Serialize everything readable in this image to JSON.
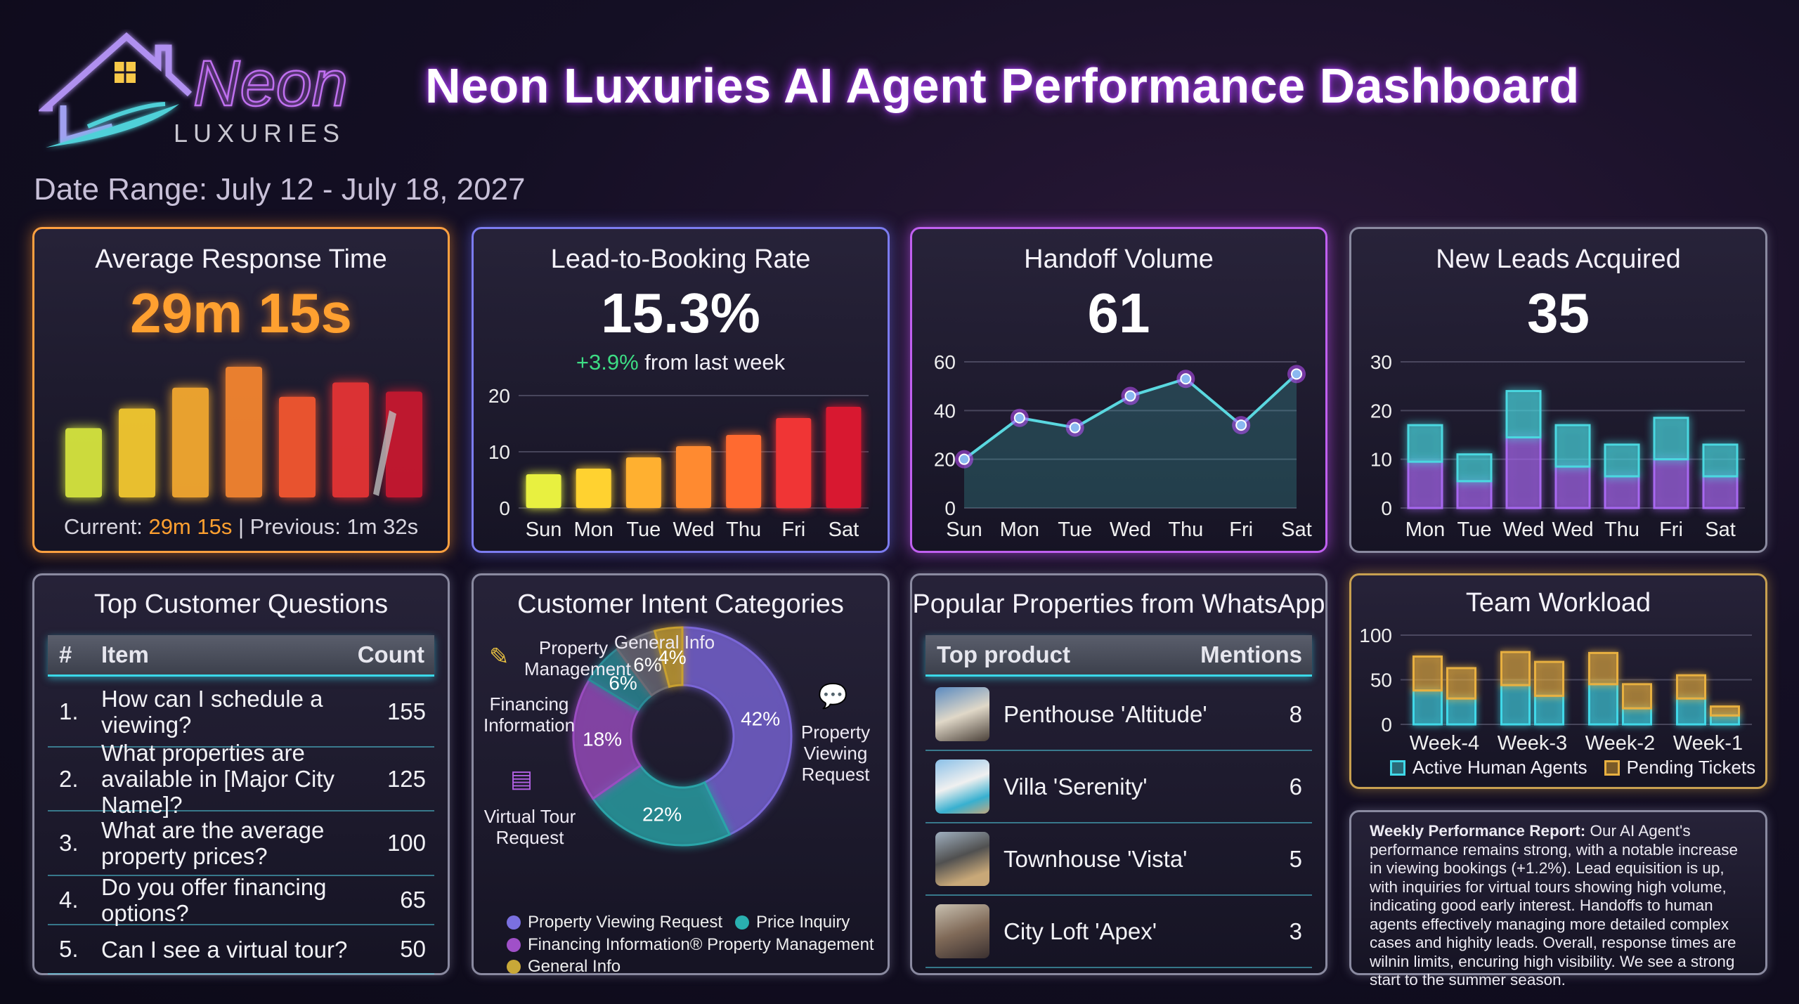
{
  "header": {
    "logo_text": "Neon",
    "logo_subtext": "LUXURIES",
    "title": "Neon Luxuries AI Agent Performance Dashboard",
    "date_range": "Date Range: July 12 - July 18, 2027"
  },
  "avg_response": {
    "title": "Average Response Time",
    "value": "29m 15s",
    "current_label": "Current: ",
    "current_value": "29m 15s",
    "separator": " | ",
    "previous_label": "Previous: 1m 32s",
    "chart_data": {
      "type": "bar",
      "relative_levels": [
        53,
        68,
        84,
        100,
        77,
        88,
        81
      ],
      "colors": [
        "#e0f040",
        "#ffd230",
        "#ffb030",
        "#ff8a30",
        "#ff5a30",
        "#f03535",
        "#d01830"
      ]
    }
  },
  "lead_booking": {
    "title": "Lead-to-Booking Rate",
    "value": "15.3%",
    "delta": "+3.9%",
    "delta_suffix": " from last week",
    "delta_color": "#3ddc84",
    "chart_data": {
      "type": "bar",
      "categories": [
        "Sun",
        "Mon",
        "Tue",
        "Wed",
        "Thu",
        "Fri",
        "Sat"
      ],
      "values": [
        6,
        7,
        9,
        11,
        13,
        16,
        18
      ],
      "ylim": [
        0,
        20
      ],
      "yticks": [
        "0",
        "10",
        "20"
      ],
      "colors": [
        "#e8f040",
        "#ffd230",
        "#ffb030",
        "#ff8a30",
        "#ff6a30",
        "#f03535",
        "#d81830"
      ]
    }
  },
  "handoff": {
    "title": "Handoff Volume",
    "value": "61",
    "chart_data": {
      "type": "area",
      "categories": [
        "Sun",
        "Mon",
        "Tue",
        "Wed",
        "Thu",
        "Fri",
        "Sat"
      ],
      "values": [
        20,
        37,
        33,
        46,
        53,
        34,
        55
      ],
      "ylim": [
        0,
        60
      ],
      "yticks": [
        "0",
        "20",
        "40",
        "60"
      ],
      "line_color": "#5ad8e0",
      "marker_color": "#c060ff"
    }
  },
  "new_leads": {
    "title": "New Leads Acquired",
    "value": "35",
    "chart_data": {
      "type": "bar",
      "stacked": true,
      "categories": [
        "Mon",
        "Tue",
        "Wed",
        "Wed",
        "Thu",
        "Fri",
        "Sat"
      ],
      "series": [
        {
          "values": [
            9.5,
            5.5,
            14.5,
            8.5,
            6.5,
            10,
            6.5
          ],
          "color": "#a868f0"
        },
        {
          "values": [
            7.5,
            5.5,
            9.5,
            8.5,
            6.5,
            8.5,
            6.5
          ],
          "color": "#4ad8e0"
        }
      ],
      "ylim": [
        0,
        30
      ],
      "yticks": [
        "0",
        "10",
        "20",
        "30"
      ]
    }
  },
  "top_questions": {
    "title": "Top Customer Questions",
    "col_num": "#",
    "col_item": "Item",
    "col_count": "Count",
    "rows": [
      {
        "num": "1.",
        "item": "How can I schedule a viewing?",
        "count": "155"
      },
      {
        "num": "2.",
        "item": "What properties are available in [Major City Name]?",
        "count": "125"
      },
      {
        "num": "3.",
        "item": "What are the average property prices?",
        "count": "100"
      },
      {
        "num": "4.",
        "item": "Do you offer financing options?",
        "count": "65"
      },
      {
        "num": "5.",
        "item": "Can I see a virtual tour?",
        "count": "50"
      }
    ]
  },
  "intent": {
    "title": "Customer Intent Categories",
    "chart_data": {
      "type": "pie",
      "donut": true,
      "slices": [
        {
          "label": "Property Viewing Request",
          "value": 42,
          "color": "#7a66d8"
        },
        {
          "label": "Price Inquiry",
          "value": 22,
          "color": "#2aa4a8"
        },
        {
          "label": "Virtual Tour Request",
          "value": 18,
          "color": "#9a4cc0"
        },
        {
          "label": "Financing Information",
          "value": 6,
          "color": "#2a8c98"
        },
        {
          "label": "Property Management",
          "value": 6,
          "color": "#6c6a74"
        },
        {
          "label": "General Info",
          "value": 4,
          "color": "#c8a030"
        }
      ],
      "value_labels": [
        "42%",
        "22%",
        "18%",
        "6%",
        "6%",
        "4%"
      ]
    },
    "callouts": {
      "general": "General Info",
      "management": "Property Management",
      "financing": "Financing Information",
      "virtual": "Virtual Tour Request",
      "viewing": "Property Viewing Request"
    },
    "legend": [
      {
        "label": "Property Viewing Request",
        "color": "#7a70e0"
      },
      {
        "label": "Price Inquiry",
        "color": "#2ab0b0"
      },
      {
        "label": "Financing Information® Property Management",
        "color": "#a050c8"
      },
      {
        "label": "General Info",
        "color": "#c8a838"
      }
    ]
  },
  "properties": {
    "title": "Popular Properties from WhatsApp",
    "col_product": "Top product",
    "col_mentions": "Mentions",
    "rows": [
      {
        "name": "Penthouse 'Altitude'",
        "mentions": "8"
      },
      {
        "name": "Villa 'Serenity'",
        "mentions": "6"
      },
      {
        "name": "Townhouse 'Vista'",
        "mentions": "5"
      },
      {
        "name": "City Loft 'Apex'",
        "mentions": "3"
      }
    ]
  },
  "workload": {
    "title": "Team Workload",
    "chart_data": {
      "type": "bar",
      "stacked": true,
      "categories": [
        "Week-4",
        "Week-3",
        "Week-2",
        "Week-1"
      ],
      "ylim": [
        0,
        100
      ],
      "yticks": [
        "0",
        "50",
        "100"
      ],
      "series": [
        {
          "name": "Active Human Agents",
          "color": "#40d8e8",
          "values_per_bar": [
            [
              38,
              29
            ],
            [
              44,
              32
            ],
            [
              45,
              18
            ],
            [
              29,
              10
            ]
          ]
        },
        {
          "name": "Pending Tickets",
          "color": "#e8b040",
          "values_per_bar": [
            [
              38,
              34
            ],
            [
              37,
              38
            ],
            [
              35,
              27
            ],
            [
              26,
              10
            ]
          ]
        }
      ]
    }
  },
  "report": {
    "heading": "Weekly Performance Report:",
    "body": " Our AI Agent's performance remains strong, with a notable increase in viewing bookings (+1.2%). Lead equisition is up, with inquiries for virtual tours showing high volume, indicating good early interest. Handoffs to human agents effectively managing more detailed complex cases and highity leads. Overall, response times are wilnin limits, encuring high visibility. We see a strong start to the summer season."
  }
}
